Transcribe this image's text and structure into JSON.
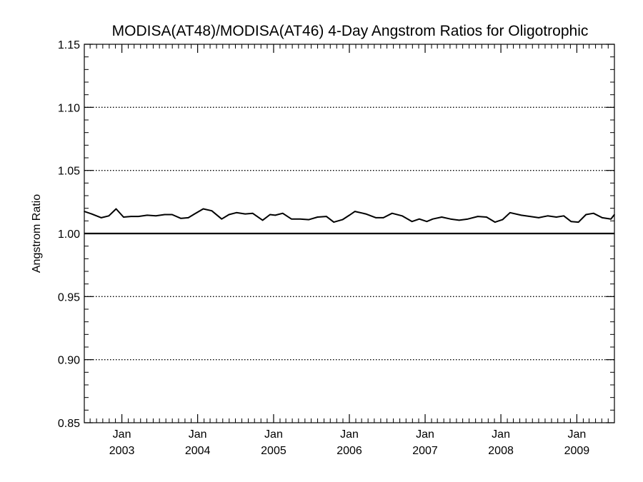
{
  "chart_data": {
    "type": "line",
    "title": "MODISA(AT48)/MODISA(AT46) 4-Day Angstrom Ratios for Oligotrophic",
    "ylabel": "Angstrom Ratio",
    "xlabel": "",
    "ylim": [
      0.85,
      1.15
    ],
    "xlim": [
      "2002-07-04",
      "2009-07-01"
    ],
    "yticks": [
      "0.85",
      "0.90",
      "0.95",
      "1.00",
      "1.05",
      "1.10",
      "1.15"
    ],
    "xticks": [
      {
        "month": "Jan",
        "year": "2003",
        "date": "2003-01-01"
      },
      {
        "month": "Jan",
        "year": "2004",
        "date": "2004-01-01"
      },
      {
        "month": "Jan",
        "year": "2005",
        "date": "2005-01-01"
      },
      {
        "month": "Jan",
        "year": "2006",
        "date": "2006-01-01"
      },
      {
        "month": "Jan",
        "year": "2007",
        "date": "2007-01-01"
      },
      {
        "month": "Jan",
        "year": "2008",
        "date": "2008-01-01"
      },
      {
        "month": "Jan",
        "year": "2009",
        "date": "2009-01-01"
      }
    ],
    "grid": "dotted horizontal at major y ticks",
    "reference_line": 1.0,
    "series": [
      {
        "dates": [
          "2002-07-04",
          "2002-08-08",
          "2002-09-24",
          "2002-10-30",
          "2002-12-04",
          "2003-01-09",
          "2003-02-14",
          "2003-03-22",
          "2003-05-03",
          "2003-06-14",
          "2003-07-26",
          "2003-08-31",
          "2003-10-12",
          "2003-11-17",
          "2003-12-17",
          "2004-01-28",
          "2004-03-09",
          "2004-04-26",
          "2004-05-31",
          "2004-07-06",
          "2004-08-17",
          "2004-09-22",
          "2004-11-09",
          "2004-12-15",
          "2005-01-09",
          "2005-02-14",
          "2005-03-28",
          "2005-05-09",
          "2005-06-20",
          "2005-08-01",
          "2005-09-12",
          "2005-10-18",
          "2005-11-29",
          "2006-01-01",
          "2006-01-28",
          "2006-03-21",
          "2006-05-09",
          "2006-06-14",
          "2006-07-26",
          "2006-09-12",
          "2006-10-30",
          "2006-12-04",
          "2007-01-09",
          "2007-02-07",
          "2007-03-22",
          "2007-05-03",
          "2007-06-14",
          "2007-07-26",
          "2007-09-12",
          "2007-10-24",
          "2007-12-04",
          "2008-01-09",
          "2008-02-14",
          "2008-04-08",
          "2008-05-21",
          "2008-07-01",
          "2008-08-13",
          "2008-09-24",
          "2008-10-30",
          "2008-12-04",
          "2009-01-09",
          "2009-02-14",
          "2009-03-22",
          "2009-05-03",
          "2009-06-14",
          "2009-07-01"
        ],
        "values": [
          1.0175,
          1.0155,
          1.0125,
          1.014,
          1.0195,
          1.013,
          1.0135,
          1.0135,
          1.0145,
          1.014,
          1.015,
          1.015,
          1.012,
          1.0125,
          1.0155,
          1.0195,
          1.018,
          1.0115,
          1.015,
          1.0165,
          1.0155,
          1.016,
          1.0105,
          1.015,
          1.0145,
          1.016,
          1.0115,
          1.0115,
          1.011,
          1.013,
          1.0135,
          1.009,
          1.011,
          1.0145,
          1.0175,
          1.0155,
          1.0125,
          1.0125,
          1.016,
          1.014,
          1.0095,
          1.0115,
          1.0095,
          1.0115,
          1.013,
          1.0115,
          1.0105,
          1.0115,
          1.0135,
          1.013,
          1.009,
          1.011,
          1.0165,
          1.0145,
          1.0135,
          1.0125,
          1.014,
          1.013,
          1.014,
          1.0095,
          1.009,
          1.015,
          1.016,
          1.0125,
          1.0115,
          1.015
        ]
      }
    ]
  }
}
